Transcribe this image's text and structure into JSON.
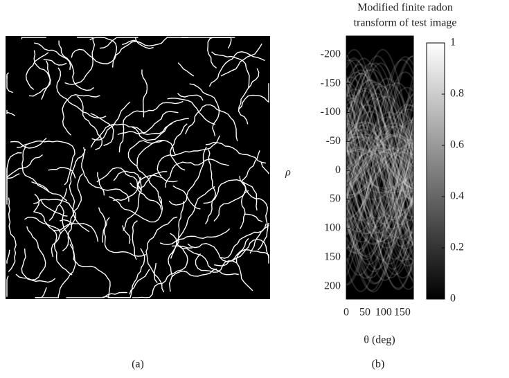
{
  "panels": {
    "a": {
      "caption": "(a)"
    },
    "b": {
      "caption": "(b)"
    }
  },
  "chart_data": {
    "type": "heatmap",
    "title": [
      "Modified finite radon",
      "transform of test image"
    ],
    "xlabel": "θ (deg)",
    "ylabel": "ρ",
    "xlim": [
      0,
      180
    ],
    "xticks": [
      0,
      50,
      100,
      150
    ],
    "ylim": [
      -232,
      222
    ],
    "yticks": [
      -200,
      -150,
      -100,
      -50,
      0,
      50,
      100,
      150,
      200
    ],
    "colorbar": {
      "lim": [
        0,
        1
      ],
      "ticks": [
        0,
        0.2,
        0.4,
        0.6,
        0.8,
        1
      ],
      "colors": [
        "#000000",
        "#ffffff"
      ]
    }
  }
}
